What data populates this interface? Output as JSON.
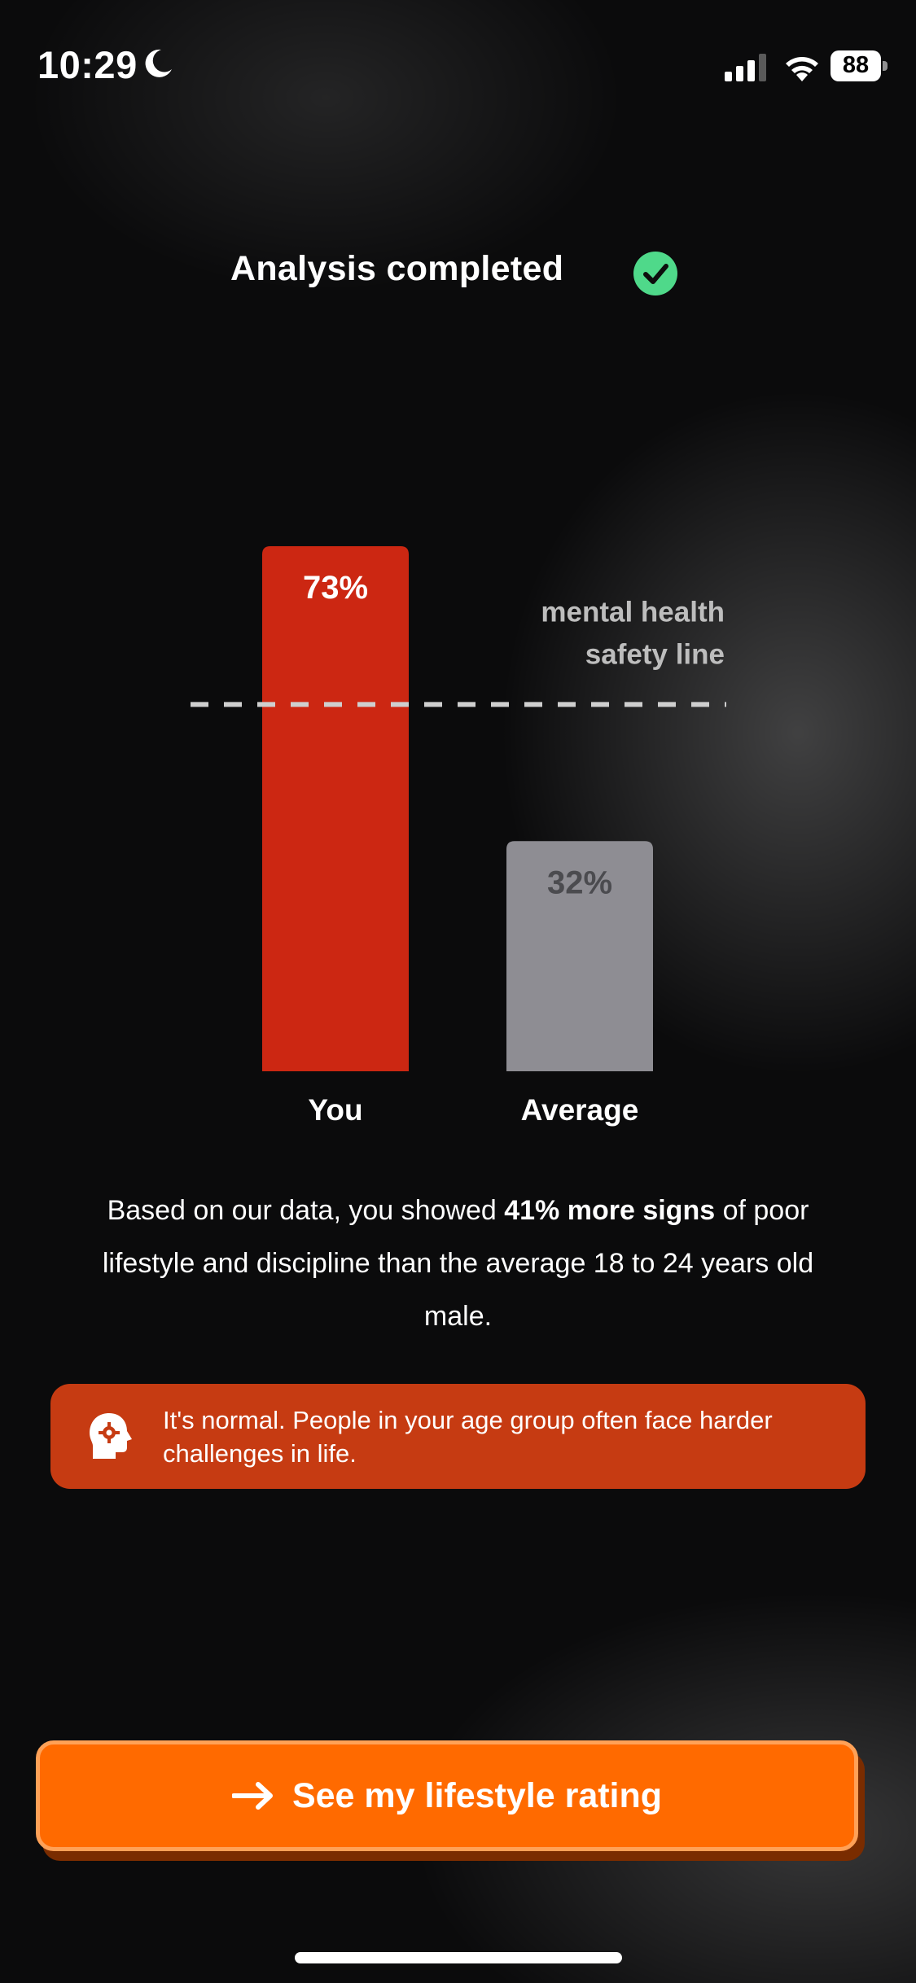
{
  "status_bar": {
    "time": "10:29",
    "battery": "88"
  },
  "header": {
    "title": "Analysis completed"
  },
  "chart_data": {
    "type": "bar",
    "categories": [
      "You",
      "Average"
    ],
    "values": [
      73,
      32
    ],
    "value_labels": [
      "73%",
      "32%"
    ],
    "ylim": [
      0,
      73
    ],
    "reference_line": {
      "value": 51,
      "label_line1": "mental health",
      "label_line2": "safety line"
    },
    "colors": [
      "#cc2712",
      "#8e8d93"
    ],
    "value_label_colors": [
      "#ffffff",
      "#4b4b4f"
    ]
  },
  "description": {
    "pre": "Based on our data, you showed ",
    "bold": "41% more signs",
    "post": " of poor lifestyle and discipline than the average 18 to 24 years old male."
  },
  "info_card": {
    "icon": "head-gear-icon",
    "text": "It's normal. People in your age group often face harder challenges in life."
  },
  "cta": {
    "label": "See my lifestyle rating",
    "icon": "arrow-right-icon"
  },
  "colors": {
    "accent": "#ff6a00",
    "card": "#c63b12",
    "check": "#4fd98a"
  }
}
